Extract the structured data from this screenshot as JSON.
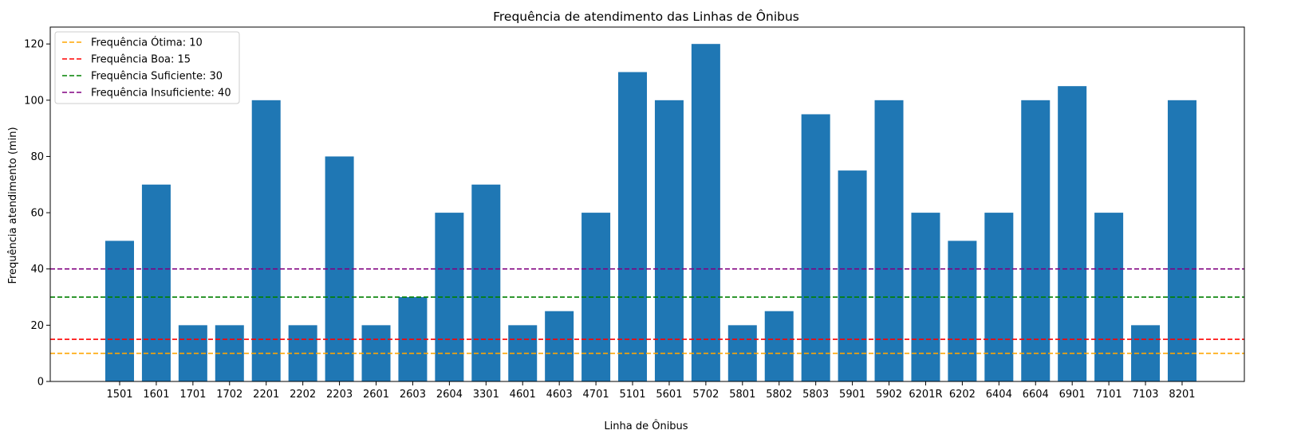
{
  "chart_data": {
    "type": "bar",
    "title": "Frequência de atendimento das Linhas de Ônibus",
    "xlabel": "Linha de Ônibus",
    "ylabel": "Frequência atendimento (min)",
    "ylim": [
      0,
      126
    ],
    "yticks": [
      0,
      20,
      40,
      60,
      80,
      100,
      120
    ],
    "grid": false,
    "legend_position": "top-left",
    "bar_color": "#1f77b4",
    "categories": [
      "1501",
      "1601",
      "1701",
      "1702",
      "2201",
      "2202",
      "2203",
      "2601",
      "2603",
      "2604",
      "3301",
      "4601",
      "4603",
      "4701",
      "5101",
      "5601",
      "5702",
      "5801",
      "5802",
      "5803",
      "5901",
      "5902",
      "6201R",
      "6202",
      "6404",
      "6604",
      "6901",
      "7101",
      "7103",
      "8201"
    ],
    "values": [
      50,
      70,
      20,
      20,
      100,
      20,
      80,
      20,
      30,
      60,
      70,
      20,
      25,
      60,
      110,
      100,
      120,
      20,
      25,
      95,
      75,
      100,
      60,
      50,
      60,
      100,
      105,
      60,
      20,
      100
    ],
    "reference_lines": [
      {
        "label": "Frequência Ótima: 10",
        "value": 10,
        "color": "#ffa500"
      },
      {
        "label": "Frequência Boa: 15",
        "value": 15,
        "color": "#ff0000"
      },
      {
        "label": "Frequência Suficiente: 30",
        "value": 30,
        "color": "#008000"
      },
      {
        "label": "Frequência Insuficiente: 40",
        "value": 40,
        "color": "#800080"
      }
    ]
  }
}
